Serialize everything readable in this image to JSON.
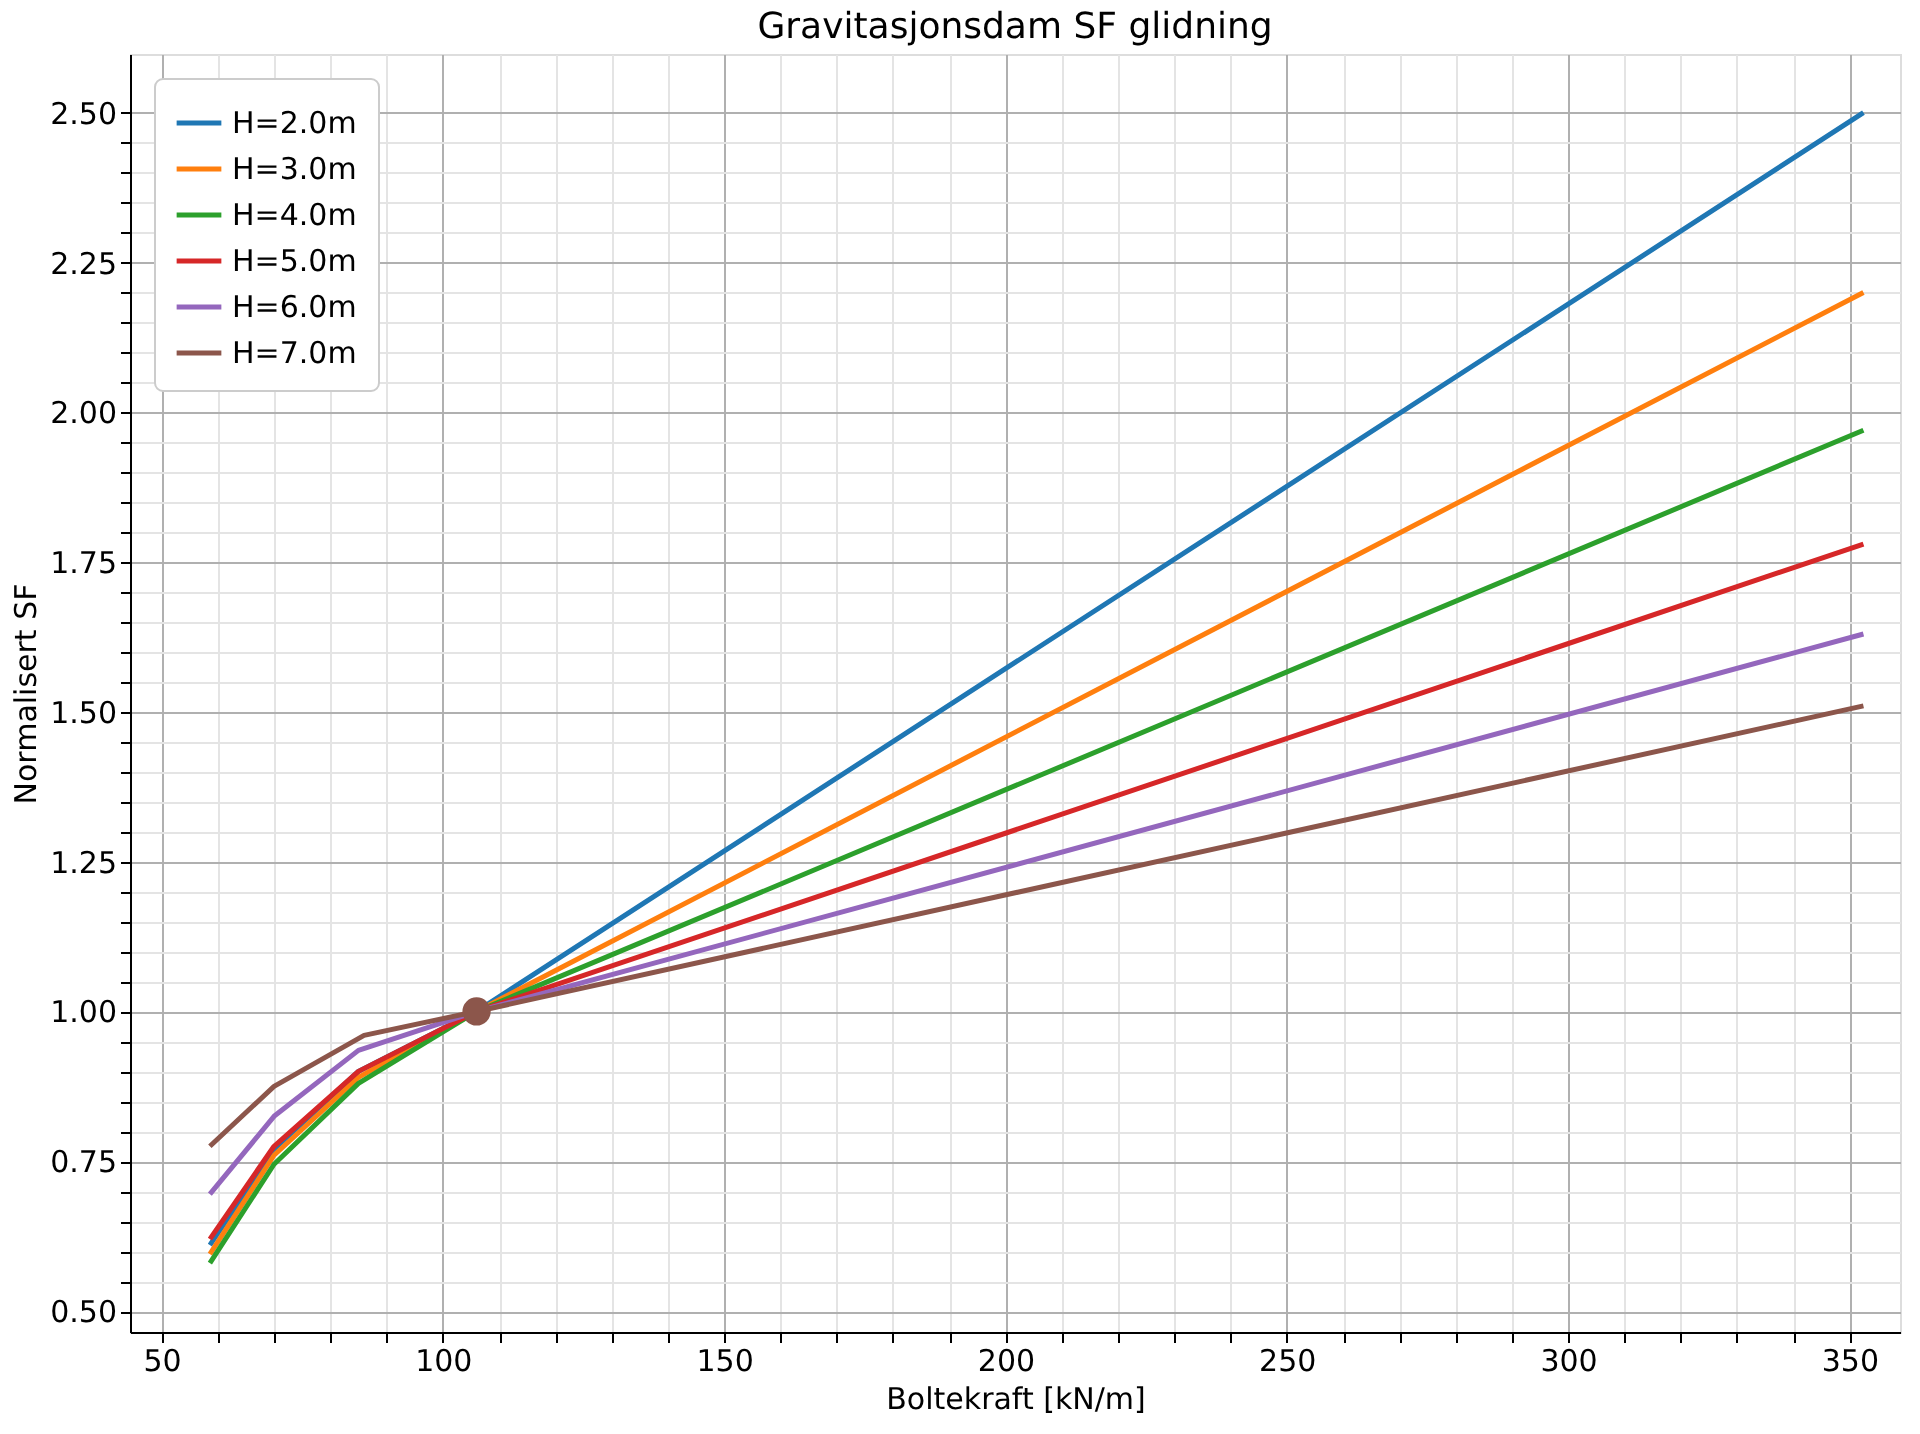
{
  "chart_data": {
    "type": "line",
    "title": "Gravitasjonsdam SF glidning",
    "xlabel": "Boltekraft [kN/m]",
    "ylabel": "Normalisert SF",
    "xlim": [
      44.4,
      359
    ],
    "ylim": [
      0.465,
      2.598
    ],
    "xticks": [
      50,
      {
        "value": 60,
        "label": null
      },
      {
        "value": 70,
        "label": null
      },
      {
        "value": 80,
        "label": null
      },
      {
        "value": 90,
        "label": null
      },
      100,
      {
        "value": 110,
        "label": null
      },
      {
        "value": 120,
        "label": null
      },
      {
        "value": 130,
        "label": null
      },
      {
        "value": 140,
        "label": null
      },
      150,
      {
        "value": 160,
        "label": null
      },
      {
        "value": 170,
        "label": null
      },
      {
        "value": 180,
        "label": null
      },
      {
        "value": 190,
        "label": null
      },
      200,
      {
        "value": 210,
        "label": null
      },
      {
        "value": 220,
        "label": null
      },
      {
        "value": 230,
        "label": null
      },
      {
        "value": 240,
        "label": null
      },
      250,
      {
        "value": 260,
        "label": null
      },
      {
        "value": 270,
        "label": null
      },
      {
        "value": 280,
        "label": null
      },
      {
        "value": 290,
        "label": null
      },
      300,
      {
        "value": 310,
        "label": null
      },
      {
        "value": 320,
        "label": null
      },
      {
        "value": 330,
        "label": null
      },
      {
        "value": 340,
        "label": null
      },
      350
    ],
    "yticks": [
      {
        "value": 0.5,
        "label": "0.50"
      },
      {
        "value": 0.55,
        "label": null
      },
      {
        "value": 0.6,
        "label": null
      },
      {
        "value": 0.65,
        "label": null
      },
      {
        "value": 0.7,
        "label": null
      },
      {
        "value": 0.75,
        "label": "0.75"
      },
      {
        "value": 0.8,
        "label": null
      },
      {
        "value": 0.85,
        "label": null
      },
      {
        "value": 0.9,
        "label": null
      },
      {
        "value": 0.95,
        "label": null
      },
      {
        "value": 1.0,
        "label": "1.00"
      },
      {
        "value": 1.05,
        "label": null
      },
      {
        "value": 1.1,
        "label": null
      },
      {
        "value": 1.15,
        "label": null
      },
      {
        "value": 1.2,
        "label": null
      },
      {
        "value": 1.25,
        "label": "1.25"
      },
      {
        "value": 1.3,
        "label": null
      },
      {
        "value": 1.35,
        "label": null
      },
      {
        "value": 1.4,
        "label": null
      },
      {
        "value": 1.45,
        "label": null
      },
      {
        "value": 1.5,
        "label": "1.50"
      },
      {
        "value": 1.55,
        "label": null
      },
      {
        "value": 1.6,
        "label": null
      },
      {
        "value": 1.65,
        "label": null
      },
      {
        "value": 1.7,
        "label": null
      },
      {
        "value": 1.75,
        "label": "1.75"
      },
      {
        "value": 1.8,
        "label": null
      },
      {
        "value": 1.85,
        "label": null
      },
      {
        "value": 1.9,
        "label": null
      },
      {
        "value": 1.95,
        "label": null
      },
      {
        "value": 2.0,
        "label": "2.00"
      },
      {
        "value": 2.05,
        "label": null
      },
      {
        "value": 2.1,
        "label": null
      },
      {
        "value": 2.15,
        "label": null
      },
      {
        "value": 2.2,
        "label": null
      },
      {
        "value": 2.25,
        "label": "2.25"
      },
      {
        "value": 2.3,
        "label": null
      },
      {
        "value": 2.35,
        "label": null
      },
      {
        "value": 2.4,
        "label": null
      },
      {
        "value": 2.45,
        "label": null
      },
      {
        "value": 2.5,
        "label": "2.50"
      }
    ],
    "grid": true,
    "legend": "top left",
    "line_style": "solid",
    "series": [
      {
        "name": "H=2.0m",
        "color": "#1f77b4",
        "x": [
          58.6,
          70,
          85,
          106,
          352.5
        ],
        "values": [
          0.61,
          0.77,
          0.9,
          1.0,
          2.5
        ]
      },
      {
        "name": "H=3.0m",
        "color": "#ff7f0e",
        "x": [
          58.6,
          70,
          85,
          106,
          352.5
        ],
        "values": [
          0.595,
          0.76,
          0.89,
          1.0,
          2.2
        ]
      },
      {
        "name": "H=4.0m",
        "color": "#2ca02c",
        "x": [
          58.6,
          70,
          85,
          106,
          352.5
        ],
        "values": [
          0.58,
          0.745,
          0.88,
          1.0,
          1.97
        ]
      },
      {
        "name": "H=5.0m",
        "color": "#d62728",
        "x": [
          58.6,
          70,
          85,
          106,
          352.5
        ],
        "values": [
          0.62,
          0.775,
          0.9,
          1.0,
          1.78
        ]
      },
      {
        "name": "H=6.0m",
        "color": "#9467bd",
        "x": [
          58.6,
          70,
          85,
          106,
          352.5
        ],
        "values": [
          0.695,
          0.825,
          0.935,
          1.0,
          1.63
        ]
      },
      {
        "name": "H=7.0m",
        "color": "#8c564b",
        "x": [
          58.6,
          70,
          86,
          106,
          352.5
        ],
        "values": [
          0.775,
          0.875,
          0.96,
          1.0,
          1.51
        ]
      },
      {
        "type": "scatter",
        "marker": "circle",
        "color": "#8c564b",
        "x": [
          106
        ],
        "values": [
          1.0
        ]
      }
    ]
  }
}
